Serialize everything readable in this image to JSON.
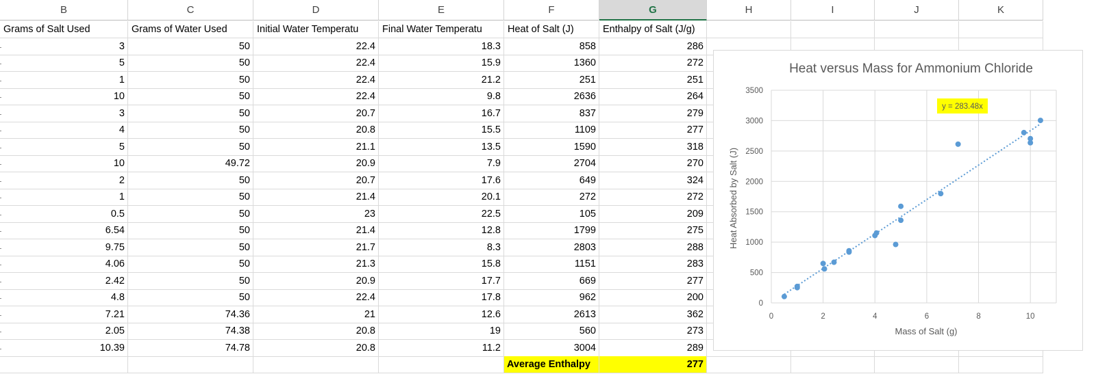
{
  "columns": [
    {
      "letter": "B",
      "header": "Grams of Salt Used",
      "filter": true
    },
    {
      "letter": "C",
      "header": "Grams of Water Used",
      "filter": true
    },
    {
      "letter": "D",
      "header": "Initial Water Temperatu",
      "filter": true
    },
    {
      "letter": "E",
      "header": "Final Water Temperatu",
      "filter": true
    },
    {
      "letter": "F",
      "header": "Heat of Salt (J)",
      "filter": false
    },
    {
      "letter": "G",
      "header": "Enthalpy of Salt (J/g)",
      "filter": false
    },
    {
      "letter": "H",
      "header": "",
      "filter": false
    },
    {
      "letter": "I",
      "header": "",
      "filter": false
    },
    {
      "letter": "J",
      "header": "",
      "filter": false
    },
    {
      "letter": "K",
      "header": "",
      "filter": false
    }
  ],
  "selected_column": "G",
  "rows": [
    [
      "3",
      "50",
      "22.4",
      "18.3",
      "858",
      "286"
    ],
    [
      "5",
      "50",
      "22.4",
      "15.9",
      "1360",
      "272"
    ],
    [
      "1",
      "50",
      "22.4",
      "21.2",
      "251",
      "251"
    ],
    [
      "10",
      "50",
      "22.4",
      "9.8",
      "2636",
      "264"
    ],
    [
      "3",
      "50",
      "20.7",
      "16.7",
      "837",
      "279"
    ],
    [
      "4",
      "50",
      "20.8",
      "15.5",
      "1109",
      "277"
    ],
    [
      "5",
      "50",
      "21.1",
      "13.5",
      "1590",
      "318"
    ],
    [
      "10",
      "49.72",
      "20.9",
      "7.9",
      "2704",
      "270"
    ],
    [
      "2",
      "50",
      "20.7",
      "17.6",
      "649",
      "324"
    ],
    [
      "1",
      "50",
      "21.4",
      "20.1",
      "272",
      "272"
    ],
    [
      "0.5",
      "50",
      "23",
      "22.5",
      "105",
      "209"
    ],
    [
      "6.54",
      "50",
      "21.4",
      "12.8",
      "1799",
      "275"
    ],
    [
      "9.75",
      "50",
      "21.7",
      "8.3",
      "2803",
      "288"
    ],
    [
      "4.06",
      "50",
      "21.3",
      "15.8",
      "1151",
      "283"
    ],
    [
      "2.42",
      "50",
      "20.9",
      "17.7",
      "669",
      "277"
    ],
    [
      "4.8",
      "50",
      "22.4",
      "17.8",
      "962",
      "200"
    ],
    [
      "7.21",
      "74.36",
      "21",
      "12.6",
      "2613",
      "362"
    ],
    [
      "2.05",
      "74.38",
      "20.8",
      "19",
      "560",
      "273"
    ],
    [
      "10.39",
      "74.78",
      "20.8",
      "11.2",
      "3004",
      "289"
    ]
  ],
  "summary": {
    "label": "Average Enthalpy",
    "value": "277",
    "highlight_color": "#ffff00"
  },
  "accent_color": "#217346",
  "chart_data": {
    "type": "scatter",
    "title": "Heat versus Mass for Ammonium Chloride",
    "xlabel": "Mass of Salt (g)",
    "ylabel": "Heat Absorbed by Salt (J)",
    "xlim": [
      0,
      11
    ],
    "ylim": [
      0,
      3500
    ],
    "xticks": [
      0,
      2,
      4,
      6,
      8,
      10
    ],
    "yticks": [
      0,
      500,
      1000,
      1500,
      2000,
      2500,
      3000,
      3500
    ],
    "grid": true,
    "marker_color": "#5b9bd5",
    "points": [
      {
        "x": 3,
        "y": 858
      },
      {
        "x": 5,
        "y": 1360
      },
      {
        "x": 1,
        "y": 251
      },
      {
        "x": 10,
        "y": 2636
      },
      {
        "x": 3,
        "y": 837
      },
      {
        "x": 4,
        "y": 1109
      },
      {
        "x": 5,
        "y": 1590
      },
      {
        "x": 10,
        "y": 2704
      },
      {
        "x": 2,
        "y": 649
      },
      {
        "x": 1,
        "y": 272
      },
      {
        "x": 0.5,
        "y": 105
      },
      {
        "x": 6.54,
        "y": 1799
      },
      {
        "x": 9.75,
        "y": 2803
      },
      {
        "x": 4.06,
        "y": 1151
      },
      {
        "x": 2.42,
        "y": 669
      },
      {
        "x": 4.8,
        "y": 962
      },
      {
        "x": 7.21,
        "y": 2613
      },
      {
        "x": 2.05,
        "y": 560
      },
      {
        "x": 10.39,
        "y": 3004
      }
    ],
    "trendline": {
      "type": "linear",
      "slope": 283.48,
      "intercept": 0,
      "equation": "y = 283.48x",
      "x_range": [
        0.5,
        10.39
      ],
      "label_color": "#ffff00"
    }
  }
}
